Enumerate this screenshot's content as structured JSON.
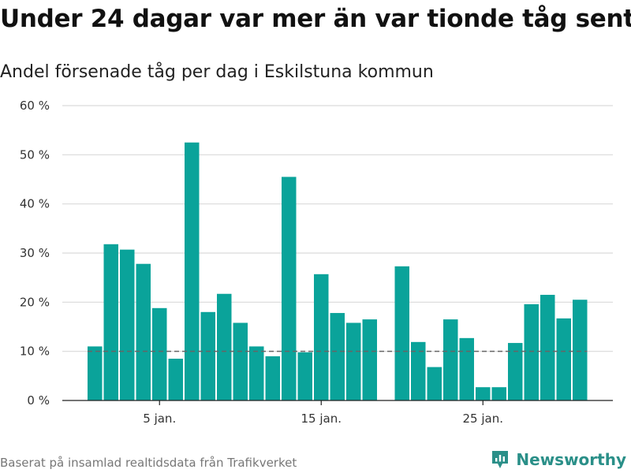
{
  "header": {
    "title": "Under 24 dagar var mer än var tionde tåg sent",
    "subtitle": "Andel försenade tåg per dag i Eskilstuna kommun"
  },
  "footer": {
    "source": "Baserat på insamlad realtidsdata från Trafikverket",
    "brand": "Newsworthy",
    "brand_icon": "newsworthy-logo-icon"
  },
  "colors": {
    "bar": "#0aa39a",
    "grid": "#d9d9d9",
    "reference_line": "#666666",
    "brand": "#2a8f88"
  },
  "chart_data": {
    "type": "bar",
    "title": "Under 24 dagar var mer än var tionde tåg sent",
    "subtitle": "Andel försenade tåg per dag i Eskilstuna kommun",
    "x": [
      1,
      2,
      3,
      4,
      5,
      6,
      7,
      8,
      9,
      10,
      11,
      12,
      13,
      14,
      15,
      16,
      17,
      18,
      19,
      20,
      21,
      22,
      23,
      24,
      25,
      26,
      27,
      28,
      29,
      30,
      31
    ],
    "values": [
      11,
      31.8,
      30.7,
      27.8,
      18.8,
      8.5,
      52.5,
      18,
      21.7,
      15.8,
      11,
      9,
      45.5,
      9.8,
      25.7,
      17.8,
      15.8,
      16.5,
      null,
      27.3,
      11.9,
      6.8,
      16.5,
      12.7,
      2.7,
      2.7,
      11.7,
      19.6,
      21.5,
      16.7,
      20.5
    ],
    "ylim": [
      0,
      60
    ],
    "yticks": [
      0,
      10,
      20,
      30,
      40,
      50,
      60
    ],
    "ytick_labels": [
      "0 %",
      "10 %",
      "20 %",
      "30 %",
      "40 %",
      "50 %",
      "60 %"
    ],
    "xticks": [
      5,
      15,
      25
    ],
    "xtick_labels": [
      "5 jan.",
      "15 jan.",
      "25 jan."
    ],
    "reference_line": 10,
    "grid": true,
    "xlabel": "",
    "ylabel": ""
  }
}
